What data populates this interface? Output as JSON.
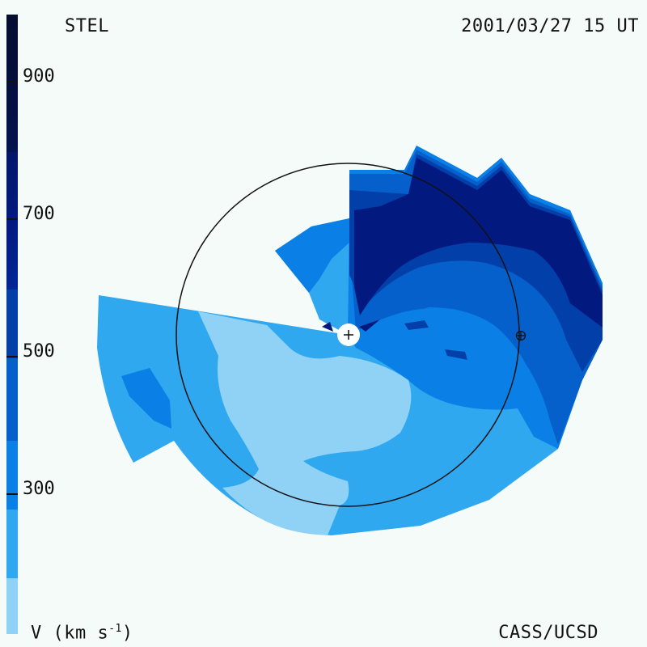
{
  "header": {
    "station": "STEL",
    "timestamp": "2001/03/27 15 UT"
  },
  "footer": {
    "units_prefix": "V (km s",
    "units_exp": "-1",
    "units_suffix": ")",
    "credit": "CASS/UCSD"
  },
  "colorbar": {
    "colors": [
      "#8fd2f5",
      "#2fa8f0",
      "#0a80e6",
      "#0560cc",
      "#033fa8",
      "#021a80",
      "#040f3d"
    ],
    "tick_labels": [
      "300",
      "500",
      "700",
      "900"
    ],
    "tick_values": [
      300,
      500,
      700,
      900
    ]
  },
  "map": {
    "colors": {
      "v200": "#8fd2f5",
      "v300": "#2fa8f0",
      "v400": "#0a80e6",
      "v500": "#0560cc",
      "v600": "#033fa8",
      "v700": "#021a80"
    },
    "sun_marker": "+",
    "earth_marker": "earth-symbol-icon"
  }
}
